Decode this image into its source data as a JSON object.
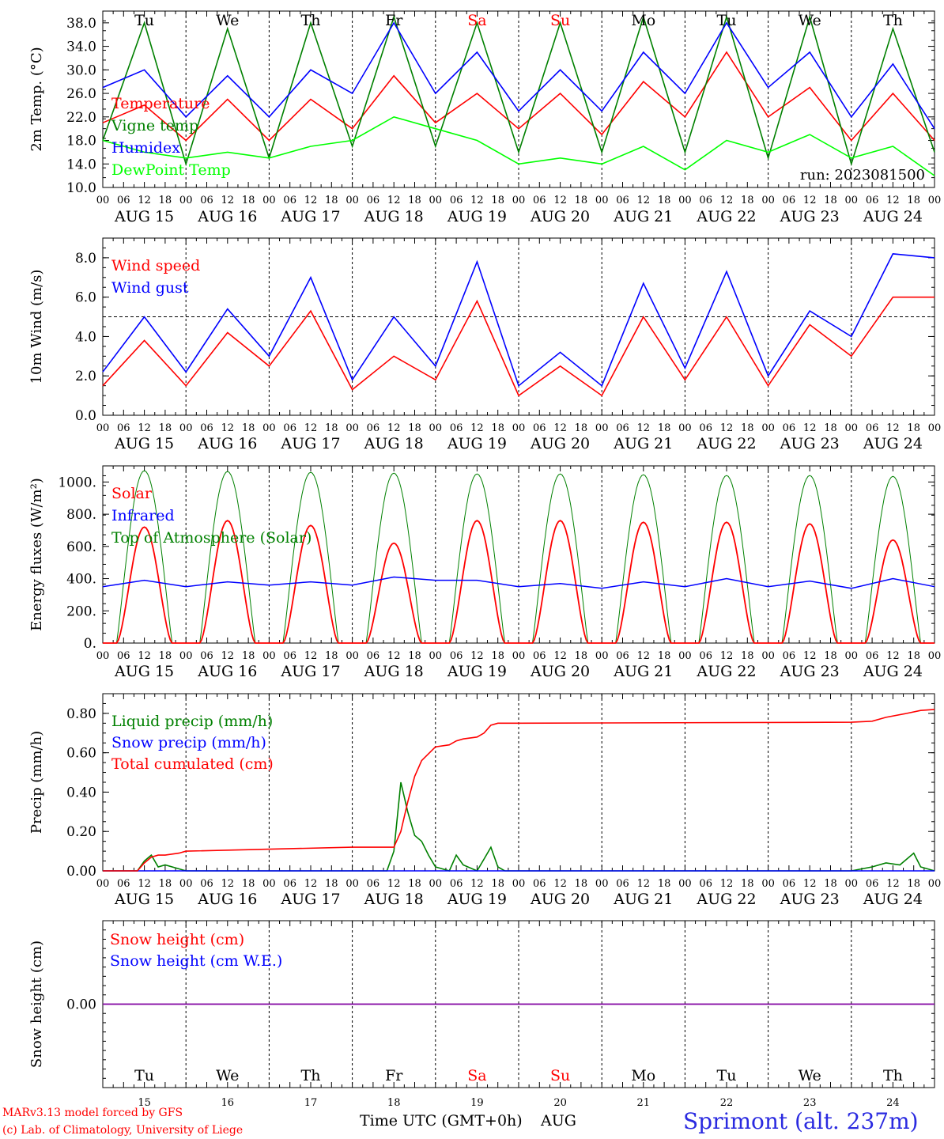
{
  "footer": {
    "model": "MARv3.13 model forced by GFS",
    "copyright": "(c) Lab. of Climatology, University of Liege",
    "xaxis_title": "Time UTC (GMT+0h)",
    "month": "AUG",
    "location": "Sprimont (alt. 237m)"
  },
  "colors": {
    "red": "#ff0000",
    "blue": "#0000ff",
    "dark_green": "#008000",
    "light_green": "#00ff00",
    "purple": "#8000a0",
    "grid": "#000000"
  },
  "days": [
    {
      "abbr": "Tu",
      "date": "AUG 15",
      "num": "15",
      "weekend": false
    },
    {
      "abbr": "We",
      "date": "AUG 16",
      "num": "16",
      "weekend": false
    },
    {
      "abbr": "Th",
      "date": "AUG 17",
      "num": "17",
      "weekend": false
    },
    {
      "abbr": "Fr",
      "date": "AUG 18",
      "num": "18",
      "weekend": false
    },
    {
      "abbr": "Sa",
      "date": "AUG 19",
      "num": "19",
      "weekend": true
    },
    {
      "abbr": "Su",
      "date": "AUG 20",
      "num": "20",
      "weekend": true
    },
    {
      "abbr": "Mo",
      "date": "AUG 21",
      "num": "21",
      "weekend": false
    },
    {
      "abbr": "Tu",
      "date": "AUG 22",
      "num": "22",
      "weekend": false
    },
    {
      "abbr": "We",
      "date": "AUG 23",
      "num": "23",
      "weekend": false
    },
    {
      "abbr": "Th",
      "date": "AUG 24",
      "num": "24",
      "weekend": false
    }
  ],
  "hour_labels": [
    "00",
    "06",
    "12",
    "18"
  ],
  "chart_data": [
    {
      "type": "line",
      "ylabel": "2m Temp. (°C)",
      "ylim": [
        10,
        40
      ],
      "yticks": [
        "10.0",
        "14.0",
        "18.0",
        "22.0",
        "26.0",
        "30.0",
        "34.0",
        "38.0"
      ],
      "annotation": "run: 2023081500",
      "x": [
        0,
        12,
        24,
        36,
        48,
        60,
        72,
        84,
        96,
        108,
        120,
        132,
        144,
        156,
        168,
        180,
        192,
        204,
        216,
        228,
        240
      ],
      "series": [
        {
          "name": "Temperature",
          "color": "#ff0000",
          "values": [
            21,
            24,
            18,
            25,
            18,
            25,
            20,
            29,
            21,
            26,
            20,
            26,
            19,
            28,
            22,
            33,
            22,
            27,
            18,
            26,
            18
          ]
        },
        {
          "name": "Vigne temp",
          "color": "#008000",
          "values": [
            18,
            38,
            14,
            37,
            15,
            38,
            17,
            39,
            17,
            38,
            16,
            38,
            16,
            39,
            16,
            39,
            15,
            39,
            14,
            37,
            16
          ]
        },
        {
          "name": "Humidex",
          "color": "#0000ff",
          "values": [
            27,
            30,
            22,
            29,
            22,
            30,
            26,
            38,
            26,
            33,
            23,
            30,
            23,
            33,
            26,
            38,
            27,
            33,
            22,
            31,
            20
          ]
        },
        {
          "name": "DewPoint Temp",
          "color": "#00ff00",
          "values": [
            18,
            16,
            15,
            16,
            15,
            17,
            18,
            22,
            20,
            18,
            14,
            15,
            14,
            17,
            13,
            18,
            16,
            19,
            15,
            17,
            12
          ]
        }
      ]
    },
    {
      "type": "line",
      "ylabel": "10m Wind (m/s)",
      "ylim": [
        0,
        9
      ],
      "yticks": [
        "0.0",
        "2.0",
        "4.0",
        "6.0",
        "8.0"
      ],
      "reference_line": 5.0,
      "x": [
        0,
        12,
        24,
        36,
        48,
        60,
        72,
        84,
        96,
        108,
        120,
        132,
        144,
        156,
        168,
        180,
        192,
        204,
        216,
        228,
        240
      ],
      "series": [
        {
          "name": "Wind speed",
          "color": "#ff0000",
          "values": [
            1.5,
            3.8,
            1.5,
            4.2,
            2.5,
            5.3,
            1.3,
            3.0,
            1.8,
            5.8,
            1.0,
            2.5,
            1.0,
            5.0,
            1.8,
            5.0,
            1.5,
            4.6,
            3.0,
            6.0,
            6.0
          ]
        },
        {
          "name": "Wind gust",
          "color": "#0000ff",
          "values": [
            2.2,
            5.0,
            2.2,
            5.4,
            3.0,
            7.0,
            1.8,
            5.0,
            2.5,
            7.8,
            1.5,
            3.2,
            1.5,
            6.7,
            2.4,
            7.3,
            2.0,
            5.3,
            4.0,
            8.2,
            8.0
          ]
        }
      ]
    },
    {
      "type": "line",
      "ylabel": "Energy fluxes (W/m²)",
      "ylim": [
        0,
        1100
      ],
      "yticks": [
        "0.",
        "200.",
        "400.",
        "600.",
        "800.",
        "1000."
      ],
      "diurnal": {
        "toa_peaks": [
          1070,
          1065,
          1060,
          1055,
          1050,
          1050,
          1045,
          1040,
          1040,
          1035
        ],
        "solar_peaks": [
          720,
          760,
          730,
          620,
          760,
          760,
          750,
          750,
          740,
          640
        ],
        "sunrise_h": 4,
        "sunset_h": 20
      },
      "series": [
        {
          "name": "Solar",
          "color": "#ff0000"
        },
        {
          "name": "Infrared",
          "color": "#0000ff",
          "x": [
            0,
            12,
            24,
            36,
            48,
            60,
            72,
            84,
            96,
            108,
            120,
            132,
            144,
            156,
            168,
            180,
            192,
            204,
            216,
            228,
            240
          ],
          "values": [
            350,
            390,
            350,
            380,
            360,
            380,
            360,
            410,
            390,
            390,
            350,
            370,
            340,
            380,
            350,
            400,
            350,
            385,
            340,
            400,
            350
          ]
        },
        {
          "name": "Top of Atmosphere (Solar)",
          "color": "#008000"
        }
      ]
    },
    {
      "type": "line",
      "ylabel": "Precip (mm/h)",
      "ylim": [
        0,
        0.9
      ],
      "yticks": [
        "0.00",
        "0.20",
        "0.40",
        "0.60",
        "0.80"
      ],
      "series": [
        {
          "name": "Liquid precip (mm/h)",
          "color": "#008000",
          "x": [
            0,
            10,
            12,
            14,
            16,
            18,
            24,
            60,
            82,
            84,
            86,
            88,
            90,
            92,
            94,
            96,
            100,
            102,
            104,
            108,
            110,
            112,
            114,
            116,
            120,
            216,
            222,
            226,
            230,
            234,
            236,
            240
          ],
          "values": [
            0,
            0,
            0.05,
            0.08,
            0.02,
            0.03,
            0,
            0,
            0,
            0.1,
            0.45,
            0.3,
            0.18,
            0.15,
            0.08,
            0.02,
            0,
            0.08,
            0.03,
            0,
            0.06,
            0.12,
            0.02,
            0,
            0,
            0,
            0.02,
            0.04,
            0.03,
            0.09,
            0.02,
            0
          ]
        },
        {
          "name": "Snow precip (mm/h)",
          "color": "#0000ff",
          "x": [
            0,
            240
          ],
          "values": [
            0,
            0
          ]
        },
        {
          "name": "Total cumulated (cm)",
          "color": "#ff0000",
          "x": [
            0,
            10,
            12,
            14,
            16,
            18,
            22,
            24,
            48,
            72,
            84,
            86,
            88,
            90,
            92,
            96,
            100,
            102,
            104,
            108,
            110,
            112,
            114,
            120,
            216,
            222,
            226,
            232,
            236,
            240
          ],
          "values": [
            0,
            0,
            0.04,
            0.07,
            0.08,
            0.08,
            0.09,
            0.1,
            0.11,
            0.12,
            0.12,
            0.2,
            0.35,
            0.48,
            0.56,
            0.63,
            0.64,
            0.66,
            0.67,
            0.68,
            0.7,
            0.74,
            0.75,
            0.75,
            0.755,
            0.76,
            0.78,
            0.8,
            0.815,
            0.82
          ]
        }
      ]
    },
    {
      "type": "line",
      "ylabel": "Snow height (cm)",
      "ylim": [
        -1,
        1
      ],
      "yticks": [
        "0.00"
      ],
      "series": [
        {
          "name": "Snow height (cm)",
          "color": "#ff0000",
          "x": [
            0,
            240
          ],
          "values": [
            0,
            0
          ]
        },
        {
          "name": "Snow height (cm W.E.)",
          "color": "#0000ff",
          "x": [
            0,
            240
          ],
          "values": [
            0,
            0
          ]
        }
      ]
    }
  ]
}
